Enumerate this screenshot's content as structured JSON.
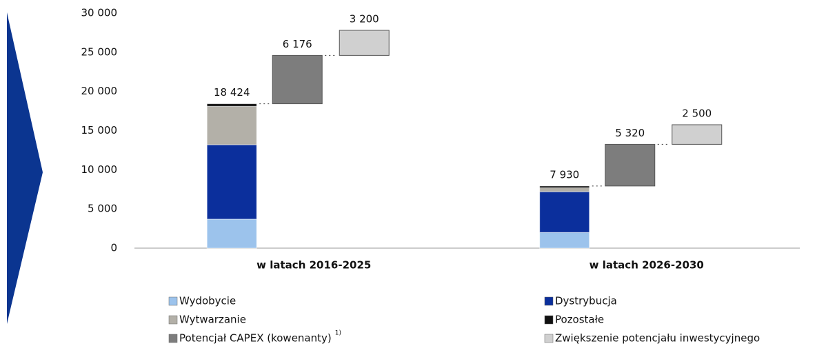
{
  "chart_data": {
    "type": "stacked_waterfall",
    "categories": [
      "w latach 2016-2025",
      "w latach 2026-2030"
    ],
    "ylim": [
      0,
      30000
    ],
    "yticks": [
      0,
      {
        "value": 5000,
        "label": "5 000"
      },
      {
        "value": 10000,
        "label": "10 000"
      },
      {
        "value": 15000,
        "label": "15 000"
      },
      {
        "value": 20000,
        "label": "20 000"
      },
      {
        "value": 25000,
        "label": "25 000"
      },
      {
        "value": 30000,
        "label": "30 000"
      }
    ],
    "series": [
      {
        "name": "Wydobycie",
        "color": "#9cc3ec",
        "kind": "stack",
        "values": [
          3700,
          2000
        ]
      },
      {
        "name": "Dystrybucja",
        "color": "#0b2f9c",
        "kind": "stack",
        "values": [
          9500,
          5200
        ]
      },
      {
        "name": "Wytwarzanie",
        "color": "#b3b0a8",
        "kind": "stack",
        "values": [
          4900,
          500
        ]
      },
      {
        "name": "Pozostałe",
        "color": "#111111",
        "kind": "stack",
        "values": [
          324,
          230
        ]
      },
      {
        "name": "Potencjał CAPEX (kowenanty)",
        "color": "#7d7d7d",
        "kind": "step",
        "values": [
          6176,
          5320
        ],
        "value_labels": [
          "6 176",
          "5 320"
        ]
      },
      {
        "name": "Zwiększenie potencjału inwestycyjnego",
        "color": "#d0d0d0",
        "kind": "step",
        "values": [
          3200,
          2500
        ],
        "value_labels": [
          "3 200",
          "2 500"
        ]
      }
    ],
    "totals": {
      "values": [
        18424,
        7930
      ],
      "value_labels": [
        "18 424",
        "7 930"
      ]
    },
    "legend_note": "1)"
  }
}
